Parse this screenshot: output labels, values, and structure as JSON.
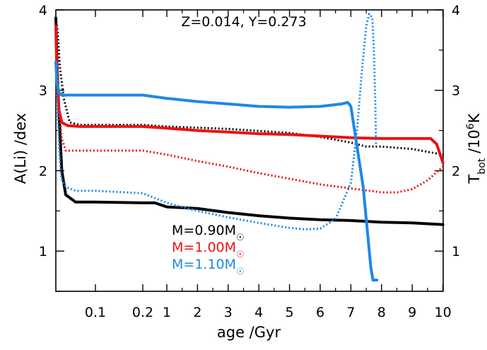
{
  "chart_data": {
    "type": "line",
    "annotation": "Z=0.014, Y=0.273",
    "xlabel": "age /Gyr",
    "ylabel_left": "A(Li) /dex",
    "ylabel_right_html": "T<tspan baseline-shift='sub' font-size='14'>bot</tspan> /10<tspan baseline-shift='super' font-size='14'>6</tspan>K",
    "ylim_left": [
      0.5,
      4.0
    ],
    "ylim_right": [
      0.5,
      4.0
    ],
    "left_ticks": [
      "1",
      "2",
      "3",
      "4"
    ],
    "right_ticks": [
      "1",
      "2",
      "3",
      "4"
    ],
    "x_scale": "piecewise: log-like below 0.2 Gyr, linear 1-10 Gyr",
    "x_ticks": [
      "0.1",
      "0.2",
      "1",
      "2",
      "3",
      "4",
      "5",
      "6",
      "7",
      "8",
      "9",
      "10"
    ],
    "legend": [
      {
        "label": "M=0.90M",
        "sub": "☉",
        "color": "#000000"
      },
      {
        "label": "M=1.00M",
        "sub": "☉",
        "color": "#ee1111"
      },
      {
        "label": "M=1.10M",
        "sub": "☉",
        "color": "#1e88e5"
      }
    ],
    "series": [
      {
        "name": "M=0.90M☉",
        "quantity": "A(Li)",
        "style": "solid",
        "color": "#000000",
        "points": [
          [
            0.0,
            3.9
          ],
          [
            0.003,
            3.3
          ],
          [
            0.008,
            2.7
          ],
          [
            0.015,
            2.0
          ],
          [
            0.025,
            1.7
          ],
          [
            0.05,
            1.61
          ],
          [
            0.1,
            1.61
          ],
          [
            0.2,
            1.6
          ],
          [
            0.6,
            1.6
          ],
          [
            1,
            1.55
          ],
          [
            2,
            1.53
          ],
          [
            3,
            1.48
          ],
          [
            4,
            1.44
          ],
          [
            5,
            1.41
          ],
          [
            6,
            1.39
          ],
          [
            7,
            1.38
          ],
          [
            8,
            1.36
          ],
          [
            9,
            1.35
          ],
          [
            10,
            1.33
          ]
        ]
      },
      {
        "name": "M=0.90M☉",
        "quantity": "T_bot",
        "style": "dotted",
        "color": "#000000",
        "points": [
          [
            0.0,
            3.9
          ],
          [
            0.005,
            3.7
          ],
          [
            0.01,
            3.3
          ],
          [
            0.02,
            2.9
          ],
          [
            0.035,
            2.6
          ],
          [
            0.06,
            2.57
          ],
          [
            0.1,
            2.57
          ],
          [
            0.2,
            2.57
          ],
          [
            1,
            2.55
          ],
          [
            3,
            2.52
          ],
          [
            5,
            2.47
          ],
          [
            6,
            2.42
          ],
          [
            7,
            2.35
          ],
          [
            7.5,
            2.3
          ],
          [
            8,
            2.3
          ],
          [
            9,
            2.27
          ],
          [
            10,
            2.2
          ]
        ]
      },
      {
        "name": "M=1.00M☉",
        "quantity": "A(Li)",
        "style": "solid",
        "color": "#ee1111",
        "points": [
          [
            0.0,
            3.8
          ],
          [
            0.003,
            3.1
          ],
          [
            0.008,
            2.75
          ],
          [
            0.015,
            2.6
          ],
          [
            0.03,
            2.56
          ],
          [
            0.06,
            2.55
          ],
          [
            0.1,
            2.55
          ],
          [
            0.2,
            2.55
          ],
          [
            1,
            2.53
          ],
          [
            2,
            2.5
          ],
          [
            3,
            2.48
          ],
          [
            4,
            2.46
          ],
          [
            5,
            2.45
          ],
          [
            6,
            2.43
          ],
          [
            7,
            2.41
          ],
          [
            8,
            2.4
          ],
          [
            9,
            2.4
          ],
          [
            9.6,
            2.4
          ],
          [
            9.8,
            2.33
          ],
          [
            10,
            2.1
          ]
        ]
      },
      {
        "name": "M=1.00M☉",
        "quantity": "T_bot",
        "style": "dotted",
        "color": "#ee1111",
        "points": [
          [
            0.0,
            3.7
          ],
          [
            0.004,
            3.3
          ],
          [
            0.008,
            2.8
          ],
          [
            0.015,
            2.4
          ],
          [
            0.025,
            2.25
          ],
          [
            0.05,
            2.25
          ],
          [
            0.1,
            2.25
          ],
          [
            0.2,
            2.25
          ],
          [
            1,
            2.2
          ],
          [
            2,
            2.12
          ],
          [
            3,
            2.05
          ],
          [
            4,
            1.97
          ],
          [
            5,
            1.9
          ],
          [
            6,
            1.83
          ],
          [
            7,
            1.78
          ],
          [
            8,
            1.73
          ],
          [
            8.5,
            1.73
          ],
          [
            9,
            1.77
          ],
          [
            9.5,
            1.88
          ],
          [
            10,
            2.05
          ]
        ]
      },
      {
        "name": "M=1.10M☉",
        "quantity": "A(Li)",
        "style": "solid",
        "color": "#1e88e5",
        "points": [
          [
            0.0,
            3.35
          ],
          [
            0.003,
            3.1
          ],
          [
            0.008,
            2.97
          ],
          [
            0.015,
            2.94
          ],
          [
            0.05,
            2.94
          ],
          [
            0.1,
            2.94
          ],
          [
            0.2,
            2.94
          ],
          [
            1,
            2.9
          ],
          [
            2,
            2.86
          ],
          [
            3,
            2.83
          ],
          [
            4,
            2.8
          ],
          [
            5,
            2.79
          ],
          [
            6,
            2.8
          ],
          [
            6.7,
            2.83
          ],
          [
            6.9,
            2.85
          ],
          [
            7.0,
            2.8
          ],
          [
            7.2,
            2.3
          ],
          [
            7.4,
            1.8
          ],
          [
            7.55,
            1.2
          ],
          [
            7.65,
            0.8
          ],
          [
            7.72,
            0.64
          ],
          [
            7.85,
            0.64
          ]
        ]
      },
      {
        "name": "M=1.10M☉",
        "quantity": "T_bot",
        "style": "dotted",
        "color": "#1e88e5",
        "points": [
          [
            0.0,
            3.3
          ],
          [
            0.004,
            2.8
          ],
          [
            0.008,
            2.3
          ],
          [
            0.014,
            1.9
          ],
          [
            0.025,
            1.8
          ],
          [
            0.05,
            1.75
          ],
          [
            0.1,
            1.75
          ],
          [
            0.2,
            1.72
          ],
          [
            1,
            1.6
          ],
          [
            2,
            1.5
          ],
          [
            3,
            1.42
          ],
          [
            4,
            1.35
          ],
          [
            5,
            1.29
          ],
          [
            5.5,
            1.27
          ],
          [
            6,
            1.28
          ],
          [
            6.5,
            1.4
          ],
          [
            7,
            1.85
          ],
          [
            7.2,
            2.5
          ],
          [
            7.35,
            3.2
          ],
          [
            7.5,
            3.8
          ],
          [
            7.6,
            3.95
          ],
          [
            7.7,
            3.9
          ],
          [
            7.75,
            3.5
          ],
          [
            7.8,
            2.8
          ],
          [
            7.82,
            2.3
          ]
        ]
      }
    ]
  }
}
